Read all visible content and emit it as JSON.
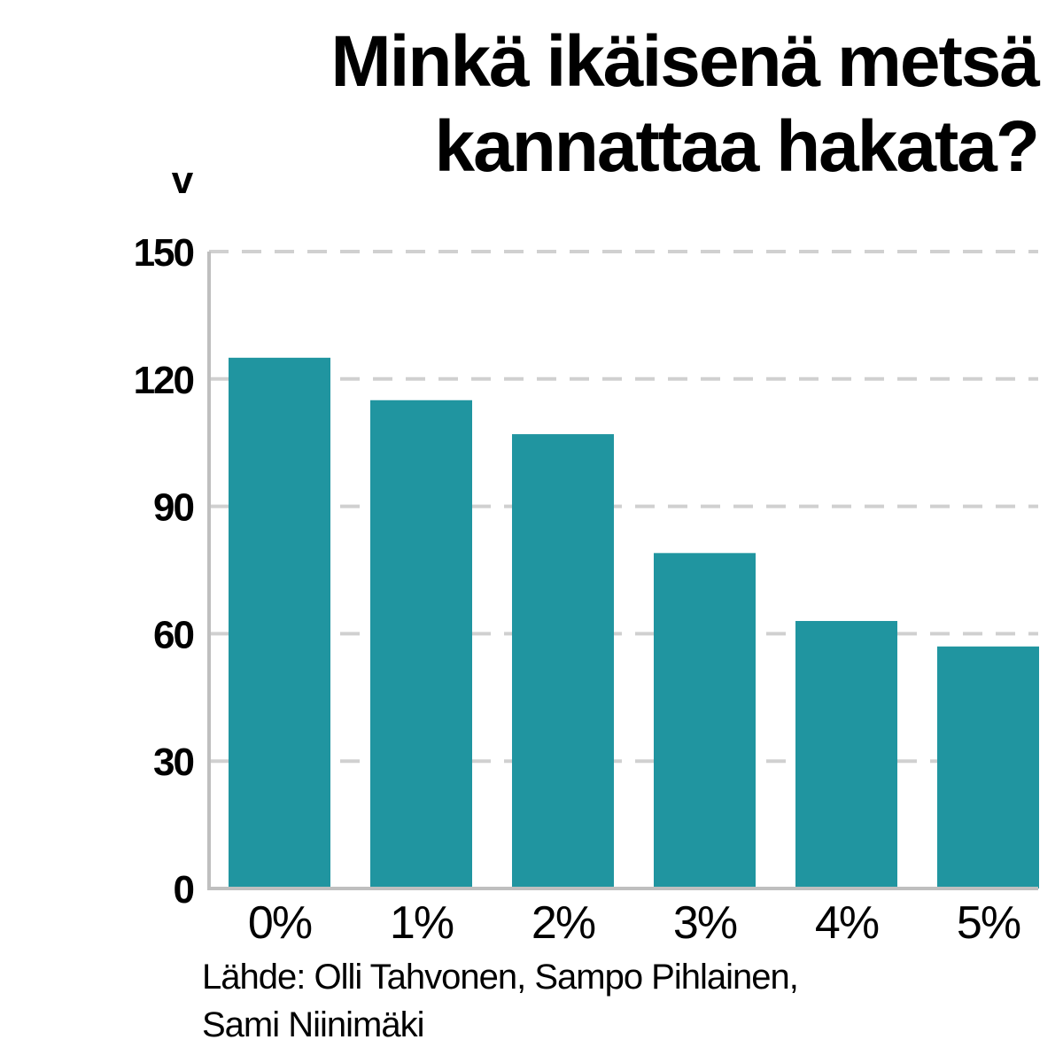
{
  "title_lines": [
    "Minkä ikäisenä metsä",
    "kannattaa hakata?"
  ],
  "source_lines": [
    "Lähde: Olli Tahvonen, Sampo Pihlainen,",
    "Sami Niinimäki"
  ],
  "colors": {
    "bar": "#2095a0",
    "grid": "#d0d0d0",
    "axis": "#bfbfbf",
    "text": "#000000"
  },
  "chart_data": {
    "type": "bar",
    "ylabel": "v",
    "xlabel": "",
    "categories": [
      "0%",
      "1%",
      "2%",
      "3%",
      "4%",
      "5%"
    ],
    "values": [
      125,
      115,
      107,
      79,
      63,
      57
    ],
    "ylim": [
      0,
      150
    ],
    "yticks": [
      0,
      30,
      60,
      90,
      120,
      150
    ],
    "grid": true,
    "legend": "none"
  }
}
